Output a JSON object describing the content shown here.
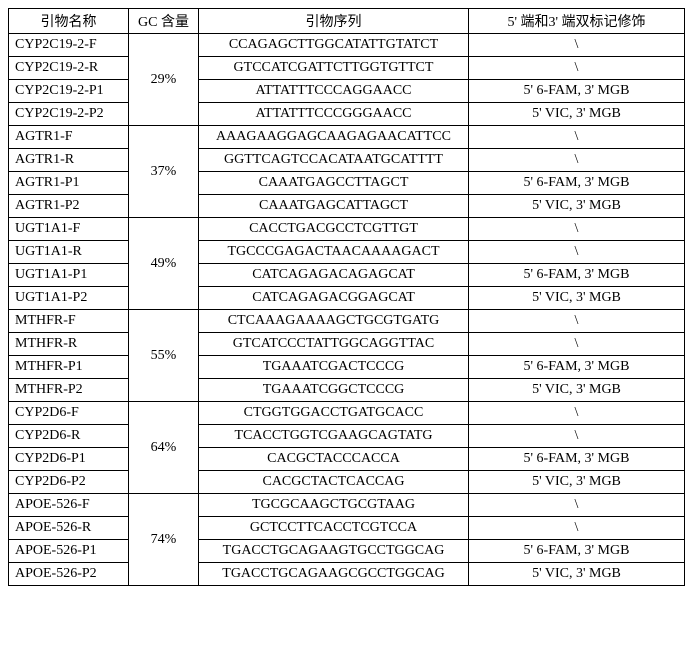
{
  "headers": {
    "name": "引物名称",
    "gc": "GC 含量",
    "seq": "引物序列",
    "mod": "5' 端和3' 端双标记修饰"
  },
  "groups": [
    {
      "gc": "29%",
      "rows": [
        {
          "name": "CYP2C19-2-F",
          "seq": "CCAGAGCTTGGCATATTGTATCT",
          "mod": "\\"
        },
        {
          "name": "CYP2C19-2-R",
          "seq": "GTCCATCGATTCTTGGTGTTCT",
          "mod": "\\"
        },
        {
          "name": "CYP2C19-2-P1",
          "seq": "ATTATTTCCCAGGAACC",
          "mod": "5' 6-FAM, 3' MGB"
        },
        {
          "name": "CYP2C19-2-P2",
          "seq": "ATTATTTCCCGGGAACC",
          "mod": "5' VIC, 3' MGB"
        }
      ]
    },
    {
      "gc": "37%",
      "rows": [
        {
          "name": "AGTR1-F",
          "seq": "AAAGAAGGAGCAAGAGAACATTCC",
          "mod": "\\"
        },
        {
          "name": "AGTR1-R",
          "seq": "GGTTCAGTCCACATAATGCATTTT",
          "mod": "\\"
        },
        {
          "name": "AGTR1-P1",
          "seq": "CAAATGAGCCTTAGCT",
          "mod": "5' 6-FAM, 3' MGB"
        },
        {
          "name": "AGTR1-P2",
          "seq": "CAAATGAGCATTAGCT",
          "mod": "5' VIC, 3' MGB"
        }
      ]
    },
    {
      "gc": "49%",
      "rows": [
        {
          "name": "UGT1A1-F",
          "seq": "CACCTGACGCCTCGTTGT",
          "mod": "\\"
        },
        {
          "name": "UGT1A1-R",
          "seq": "TGCCCGAGACTAACAAAAGACT",
          "mod": "\\"
        },
        {
          "name": "UGT1A1-P1",
          "seq": "CATCAGAGACAGAGCAT",
          "mod": "5' 6-FAM, 3' MGB"
        },
        {
          "name": "UGT1A1-P2",
          "seq": "CATCAGAGACGGAGCAT",
          "mod": "5' VIC, 3' MGB"
        }
      ]
    },
    {
      "gc": "55%",
      "rows": [
        {
          "name": "MTHFR-F",
          "seq": "CTCAAAGAAAAGCTGCGTGATG",
          "mod": "\\"
        },
        {
          "name": "MTHFR-R",
          "seq": "GTCATCCCTATTGGCAGGTTAC",
          "mod": "\\"
        },
        {
          "name": "MTHFR-P1",
          "seq": "TGAAATCGACTCCCG",
          "mod": "5' 6-FAM, 3' MGB"
        },
        {
          "name": "MTHFR-P2",
          "seq": "TGAAATCGGCTCCCG",
          "mod": "5' VIC, 3' MGB"
        }
      ]
    },
    {
      "gc": "64%",
      "rows": [
        {
          "name": "CYP2D6-F",
          "seq": "CTGGTGGACCTGATGCACC",
          "mod": "\\"
        },
        {
          "name": "CYP2D6-R",
          "seq": "TCACCTGGTCGAAGCAGTATG",
          "mod": "\\"
        },
        {
          "name": "CYP2D6-P1",
          "seq": "CACGCTACCCACCA",
          "mod": "5' 6-FAM, 3' MGB"
        },
        {
          "name": "CYP2D6-P2",
          "seq": "CACGCTACTCACCAG",
          "mod": "5' VIC, 3' MGB"
        }
      ]
    },
    {
      "gc": "74%",
      "rows": [
        {
          "name": "APOE-526-F",
          "seq": "TGCGCAAGCTGCGTAAG",
          "mod": "\\"
        },
        {
          "name": "APOE-526-R",
          "seq": "GCTCCTTCACCTCGTCCA",
          "mod": "\\"
        },
        {
          "name": "APOE-526-P1",
          "seq": "TGACCTGCAGAAGTGCCTGGCAG",
          "mod": "5' 6-FAM, 3' MGB"
        },
        {
          "name": "APOE-526-P2",
          "seq": "TGACCTGCAGAAGCGCCTGGCAG",
          "mod": "5' VIC, 3' MGB"
        }
      ]
    }
  ]
}
